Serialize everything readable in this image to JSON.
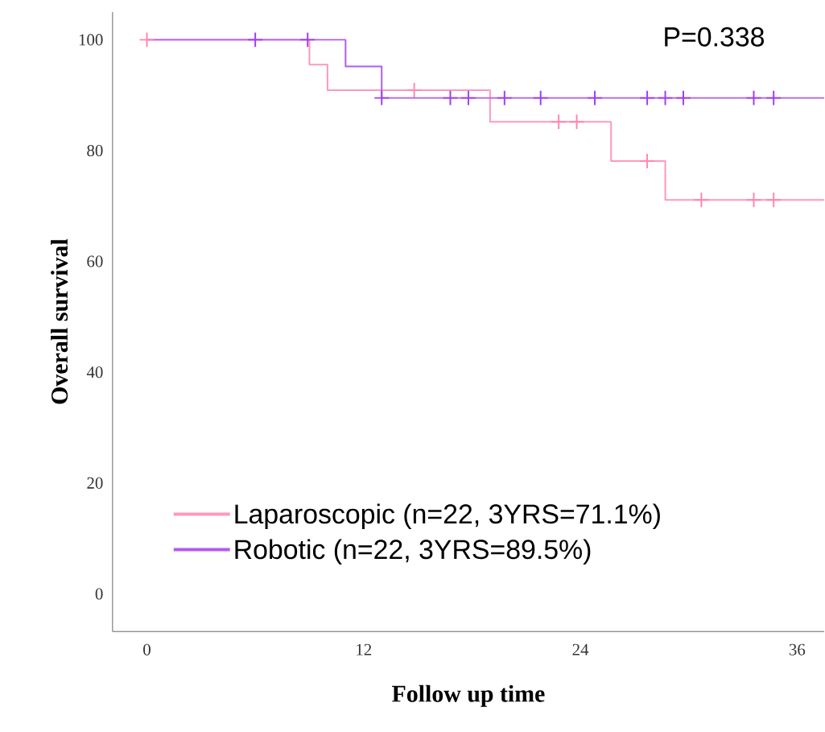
{
  "chart_data": {
    "type": "step",
    "xlabel": "Follow up time",
    "ylabel": "Overall survival",
    "annotations": [
      "P=0.338"
    ],
    "xlim": [
      -1.9,
      37.5
    ],
    "ylim": [
      -6.8,
      105
    ],
    "xticks": [
      0,
      12,
      24,
      36
    ],
    "yticks": [
      0,
      20,
      40,
      60,
      80,
      100
    ],
    "legend": "bottom",
    "line_style": "solid",
    "series": [
      {
        "name": "Laparoscopic (n=22, 3YRS=71.1%)",
        "color": "#ff99bb",
        "x": [
          0,
          9,
          10,
          19,
          25.7,
          28.7,
          37.5
        ],
        "values": [
          100,
          95.5,
          90.9,
          85.2,
          78.1,
          71.1,
          71.1
        ]
      },
      {
        "name": "Robotic (n=22, 3YRS=89.5%)",
        "color": "#b05cf0",
        "x": [
          0,
          11,
          13,
          37.5
        ],
        "values": [
          100,
          95.2,
          89.5,
          89.5
        ]
      },
      {
        "type": "scatter",
        "marker": "cross",
        "color": "#ff88b0",
        "x": [
          0,
          14.8,
          22.8,
          23.8,
          27.7,
          30.7,
          33.6,
          34.7
        ],
        "values": [
          100,
          90.9,
          85.2,
          85.2,
          78.1,
          71.1,
          71.1,
          71.1
        ]
      },
      {
        "type": "scatter",
        "marker": "cross",
        "color": "#a040ee",
        "x": [
          6,
          8.9,
          13,
          16.8,
          17.8,
          19.8,
          21.8,
          24.8,
          27.7,
          28.7,
          29.7,
          33.6,
          34.7
        ],
        "values": [
          100,
          100,
          89.5,
          89.5,
          89.5,
          89.5,
          89.5,
          89.5,
          89.5,
          89.5,
          89.5,
          89.5,
          89.5
        ]
      }
    ]
  }
}
